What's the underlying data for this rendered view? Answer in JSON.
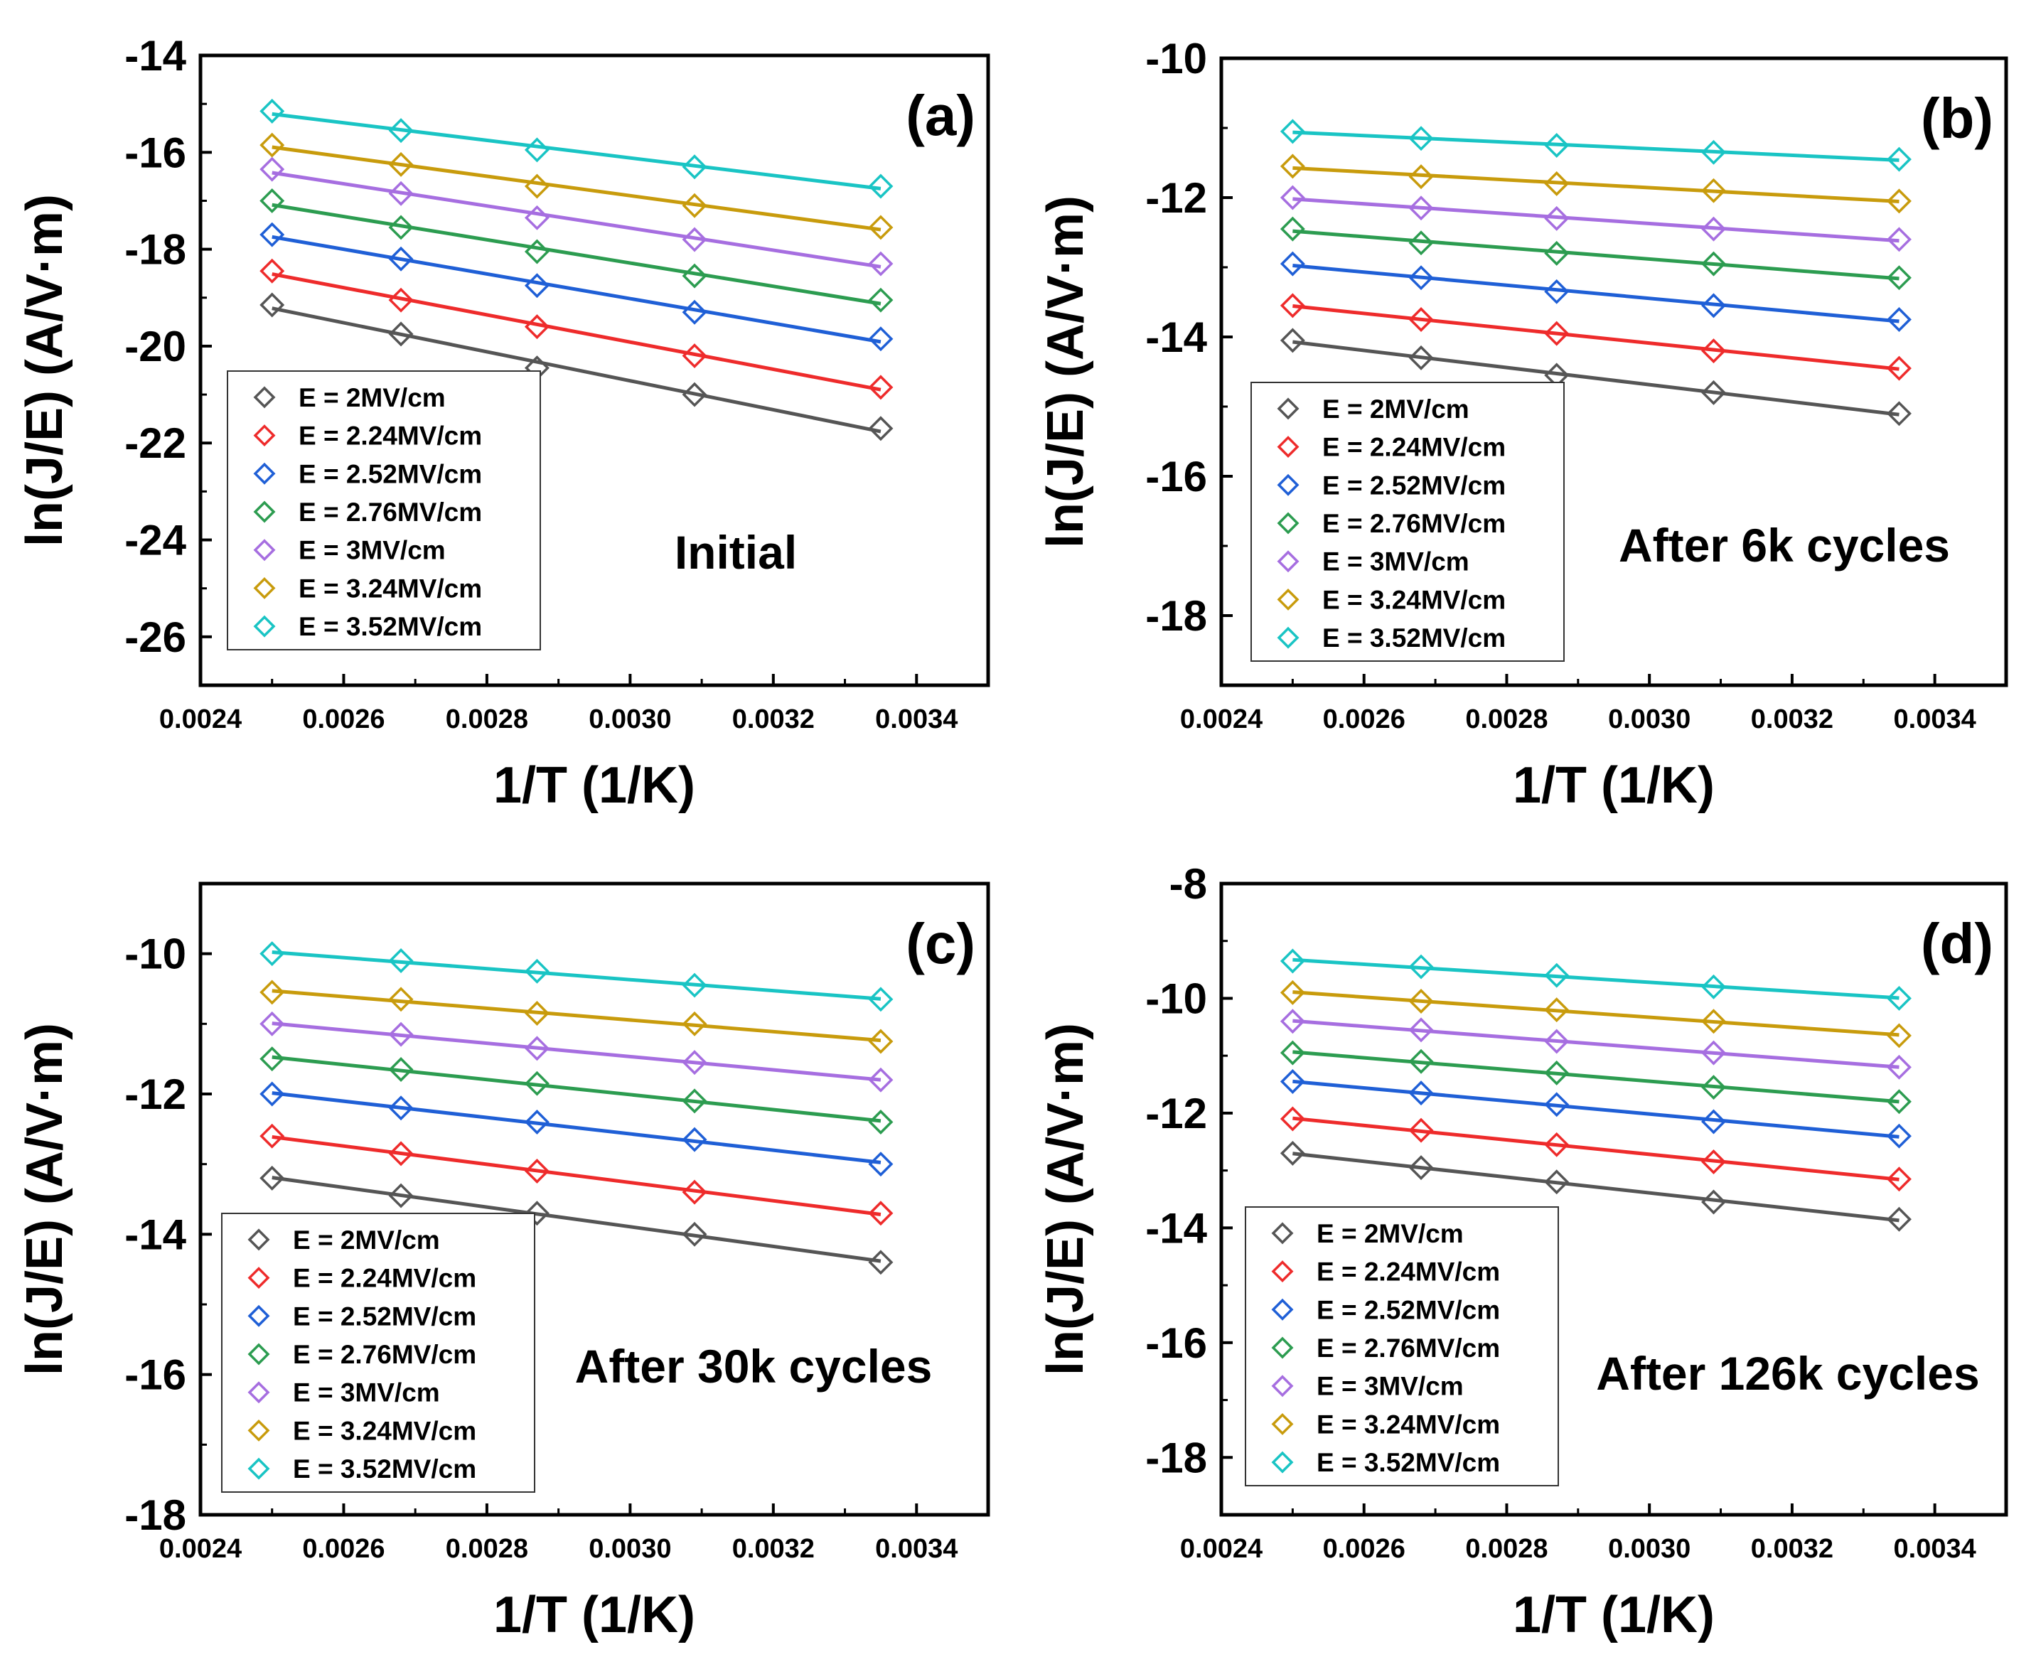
{
  "chart_data": [
    {
      "type": "line",
      "panel_label": "(a)",
      "annotation": "Initial",
      "xlabel": "1/T (1/K)",
      "ylabel": "ln(J/E) (A/V·m)",
      "xlim": [
        0.0024,
        0.0035
      ],
      "ylim": [
        -27,
        -14
      ],
      "xticks": [
        "0.0024",
        "0.0026",
        "0.0028",
        "0.0030",
        "0.0032",
        "0.0034"
      ],
      "yticks": [
        "-14",
        "-16",
        "-18",
        "-20",
        "-22",
        "-24",
        "-26"
      ],
      "x": [
        0.0025,
        0.00268,
        0.00287,
        0.00309,
        0.00335
      ],
      "series": [
        {
          "name": "E = 2MV/cm",
          "color": "#555555",
          "values": [
            -19.15,
            -19.75,
            -20.45,
            -21.0,
            -21.7
          ]
        },
        {
          "name": "E = 2.24MV/cm",
          "color": "#ee2b2b",
          "values": [
            -18.45,
            -19.05,
            -19.6,
            -20.2,
            -20.85
          ]
        },
        {
          "name": "E = 2.52MV/cm",
          "color": "#1f5fd6",
          "values": [
            -17.7,
            -18.2,
            -18.75,
            -19.3,
            -19.85
          ]
        },
        {
          "name": "E = 2.76MV/cm",
          "color": "#2c9c50",
          "values": [
            -17.0,
            -17.55,
            -18.05,
            -18.55,
            -19.05
          ]
        },
        {
          "name": "E = 3MV/cm",
          "color": "#a66ee0",
          "values": [
            -16.35,
            -16.85,
            -17.35,
            -17.8,
            -18.3
          ]
        },
        {
          "name": "E = 3.24MV/cm",
          "color": "#c89b0c",
          "values": [
            -15.85,
            -16.25,
            -16.7,
            -17.1,
            -17.55
          ]
        },
        {
          "name": "E = 3.52MV/cm",
          "color": "#19c4c4",
          "values": [
            -15.15,
            -15.55,
            -15.95,
            -16.3,
            -16.7
          ]
        }
      ]
    },
    {
      "type": "line",
      "panel_label": "(b)",
      "annotation": "After 6k cycles",
      "xlabel": "1/T (1/K)",
      "ylabel": "ln(J/E) (A/V·m)",
      "xlim": [
        0.0024,
        0.0035
      ],
      "ylim": [
        -19,
        -10
      ],
      "xticks": [
        "0.0024",
        "0.0026",
        "0.0028",
        "0.0030",
        "0.0032",
        "0.0034"
      ],
      "yticks": [
        "-10",
        "-12",
        "-14",
        "-16",
        "-18"
      ],
      "x": [
        0.0025,
        0.00268,
        0.00287,
        0.00309,
        0.00335
      ],
      "series": [
        {
          "name": "E = 2MV/cm",
          "color": "#555555",
          "values": [
            -14.05,
            -14.3,
            -14.55,
            -14.8,
            -15.1
          ]
        },
        {
          "name": "E = 2.24MV/cm",
          "color": "#ee2b2b",
          "values": [
            -13.55,
            -13.75,
            -13.95,
            -14.2,
            -14.45
          ]
        },
        {
          "name": "E = 2.52MV/cm",
          "color": "#1f5fd6",
          "values": [
            -12.95,
            -13.15,
            -13.35,
            -13.55,
            -13.75
          ]
        },
        {
          "name": "E = 2.76MV/cm",
          "color": "#2c9c50",
          "values": [
            -12.45,
            -12.65,
            -12.8,
            -12.95,
            -13.15
          ]
        },
        {
          "name": "E = 3MV/cm",
          "color": "#a66ee0",
          "values": [
            -12.0,
            -12.15,
            -12.3,
            -12.45,
            -12.6
          ]
        },
        {
          "name": "E = 3.24MV/cm",
          "color": "#c89b0c",
          "values": [
            -11.55,
            -11.7,
            -11.8,
            -11.9,
            -12.05
          ]
        },
        {
          "name": "E = 3.52MV/cm",
          "color": "#19c4c4",
          "values": [
            -11.05,
            -11.15,
            -11.25,
            -11.35,
            -11.45
          ]
        }
      ]
    },
    {
      "type": "line",
      "panel_label": "(c)",
      "annotation": "After 30k cycles",
      "xlabel": "1/T (1/K)",
      "ylabel": "ln(J/E) (A/V·m)",
      "xlim": [
        0.0024,
        0.0035
      ],
      "ylim": [
        -18,
        -9
      ],
      "xticks": [
        "0.0024",
        "0.0026",
        "0.0028",
        "0.0030",
        "0.0032",
        "0.0034"
      ],
      "yticks": [
        "-10",
        "-12",
        "-14",
        "-16",
        "-18"
      ],
      "x": [
        0.0025,
        0.00268,
        0.00287,
        0.00309,
        0.00335
      ],
      "series": [
        {
          "name": "E = 2MV/cm",
          "color": "#555555",
          "values": [
            -13.2,
            -13.45,
            -13.7,
            -14.0,
            -14.4
          ]
        },
        {
          "name": "E = 2.24MV/cm",
          "color": "#ee2b2b",
          "values": [
            -12.6,
            -12.85,
            -13.1,
            -13.4,
            -13.7
          ]
        },
        {
          "name": "E = 2.52MV/cm",
          "color": "#1f5fd6",
          "values": [
            -12.0,
            -12.2,
            -12.4,
            -12.65,
            -13.0
          ]
        },
        {
          "name": "E = 2.76MV/cm",
          "color": "#2c9c50",
          "values": [
            -11.5,
            -11.65,
            -11.85,
            -12.1,
            -12.4
          ]
        },
        {
          "name": "E = 3MV/cm",
          "color": "#a66ee0",
          "values": [
            -11.0,
            -11.15,
            -11.35,
            -11.55,
            -11.8
          ]
        },
        {
          "name": "E = 3.24MV/cm",
          "color": "#c89b0c",
          "values": [
            -10.55,
            -10.65,
            -10.85,
            -11.0,
            -11.25
          ]
        },
        {
          "name": "E = 3.52MV/cm",
          "color": "#19c4c4",
          "values": [
            -10.0,
            -10.1,
            -10.25,
            -10.45,
            -10.65
          ]
        }
      ]
    },
    {
      "type": "line",
      "panel_label": "(d)",
      "annotation": "After 126k cycles",
      "xlabel": "1/T (1/K)",
      "ylabel": "ln(J/E) (A/V·m)",
      "xlim": [
        0.0024,
        0.0035
      ],
      "ylim": [
        -19,
        -8
      ],
      "xticks": [
        "0.0024",
        "0.0026",
        "0.0028",
        "0.0030",
        "0.0032",
        "0.0034"
      ],
      "yticks": [
        "-8",
        "-10",
        "-12",
        "-14",
        "-16",
        "-18"
      ],
      "x": [
        0.0025,
        0.00268,
        0.00287,
        0.00309,
        0.00335
      ],
      "series": [
        {
          "name": "E = 2MV/cm",
          "color": "#555555",
          "values": [
            -12.7,
            -12.95,
            -13.2,
            -13.55,
            -13.85
          ]
        },
        {
          "name": "E = 2.24MV/cm",
          "color": "#ee2b2b",
          "values": [
            -12.1,
            -12.3,
            -12.55,
            -12.85,
            -13.15
          ]
        },
        {
          "name": "E = 2.52MV/cm",
          "color": "#1f5fd6",
          "values": [
            -11.45,
            -11.65,
            -11.85,
            -12.15,
            -12.4
          ]
        },
        {
          "name": "E = 2.76MV/cm",
          "color": "#2c9c50",
          "values": [
            -10.95,
            -11.1,
            -11.3,
            -11.55,
            -11.8
          ]
        },
        {
          "name": "E = 3MV/cm",
          "color": "#a66ee0",
          "values": [
            -10.4,
            -10.55,
            -10.75,
            -10.95,
            -11.2
          ]
        },
        {
          "name": "E = 3.24MV/cm",
          "color": "#c89b0c",
          "values": [
            -9.9,
            -10.05,
            -10.2,
            -10.4,
            -10.65
          ]
        },
        {
          "name": "E = 3.52MV/cm",
          "color": "#19c4c4",
          "values": [
            -9.35,
            -9.45,
            -9.6,
            -9.8,
            -10.0
          ]
        }
      ]
    }
  ]
}
